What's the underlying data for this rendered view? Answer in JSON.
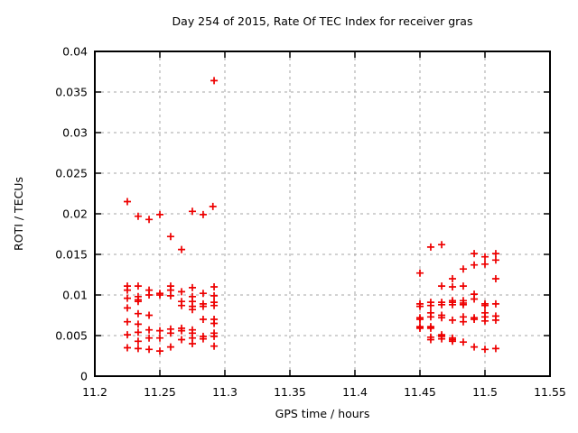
{
  "window": {
    "background_color": "#ffffff",
    "text_color": "#000000"
  },
  "chart_data": {
    "type": "scatter",
    "title": "Day 254 of 2015, Rate Of TEC Index for receiver gras",
    "xlabel": "GPS time / hours",
    "ylabel": "ROTI / TECUs",
    "xlim": [
      11.2,
      11.55
    ],
    "ylim": [
      0,
      0.04
    ],
    "xticks": {
      "values": [
        11.2,
        11.25,
        11.3,
        11.35,
        11.4,
        11.45,
        11.5,
        11.55
      ],
      "labels": [
        "11.2",
        "11.25",
        "11.3",
        "11.35",
        "11.4",
        "11.45",
        "11.5",
        "11.55"
      ]
    },
    "yticks": {
      "values": [
        0,
        0.005,
        0.01,
        0.015,
        0.02,
        0.025,
        0.03,
        0.035,
        0.04
      ],
      "labels": [
        "0",
        "0.005",
        "0.01",
        "0.015",
        "0.02",
        "0.025",
        "0.03",
        "0.035",
        "0.04"
      ]
    },
    "grid": true,
    "grid_color": "#a6a6a6",
    "border_color": "#000000",
    "legend": "none",
    "marker": {
      "shape": "plus",
      "color": "#ee0000",
      "size": 8
    },
    "series": [
      {
        "name": "ROTI",
        "points": [
          [
            11.225,
            0.0215
          ],
          [
            11.2333,
            0.0197
          ],
          [
            11.2417,
            0.0193
          ],
          [
            11.25,
            0.0199
          ],
          [
            11.2583,
            0.0172
          ],
          [
            11.2667,
            0.0156
          ],
          [
            11.275,
            0.0203
          ],
          [
            11.2833,
            0.0199
          ],
          [
            11.2908,
            0.0209
          ],
          [
            11.2917,
            0.0364
          ],
          [
            11.225,
            0.0111
          ],
          [
            11.225,
            0.0106
          ],
          [
            11.225,
            0.0096
          ],
          [
            11.225,
            0.0084
          ],
          [
            11.225,
            0.0067
          ],
          [
            11.225,
            0.0051
          ],
          [
            11.225,
            0.0035
          ],
          [
            11.2333,
            0.0111
          ],
          [
            11.2333,
            0.0098
          ],
          [
            11.2333,
            0.0094
          ],
          [
            11.2333,
            0.0092
          ],
          [
            11.2333,
            0.0077
          ],
          [
            11.2333,
            0.0064
          ],
          [
            11.2333,
            0.0054
          ],
          [
            11.2333,
            0.0043
          ],
          [
            11.2333,
            0.0034
          ],
          [
            11.2417,
            0.0106
          ],
          [
            11.2417,
            0.01
          ],
          [
            11.2417,
            0.0075
          ],
          [
            11.2417,
            0.0057
          ],
          [
            11.2417,
            0.0047
          ],
          [
            11.2417,
            0.0033
          ],
          [
            11.25,
            0.0102
          ],
          [
            11.25,
            0.01
          ],
          [
            11.25,
            0.0056
          ],
          [
            11.25,
            0.0047
          ],
          [
            11.25,
            0.0031
          ],
          [
            11.2583,
            0.0111
          ],
          [
            11.2583,
            0.0106
          ],
          [
            11.2583,
            0.0099
          ],
          [
            11.2583,
            0.0058
          ],
          [
            11.2583,
            0.0053
          ],
          [
            11.2583,
            0.0036
          ],
          [
            11.2667,
            0.0104
          ],
          [
            11.2667,
            0.0092
          ],
          [
            11.2667,
            0.0087
          ],
          [
            11.2667,
            0.0059
          ],
          [
            11.2667,
            0.0056
          ],
          [
            11.2667,
            0.0045
          ],
          [
            11.275,
            0.0109
          ],
          [
            11.275,
            0.0098
          ],
          [
            11.275,
            0.0092
          ],
          [
            11.275,
            0.0086
          ],
          [
            11.275,
            0.0082
          ],
          [
            11.275,
            0.0057
          ],
          [
            11.275,
            0.0053
          ],
          [
            11.275,
            0.0047
          ],
          [
            11.275,
            0.004
          ],
          [
            11.2833,
            0.0102
          ],
          [
            11.2833,
            0.0089
          ],
          [
            11.2833,
            0.0086
          ],
          [
            11.2833,
            0.007
          ],
          [
            11.2833,
            0.0049
          ],
          [
            11.2833,
            0.0046
          ],
          [
            11.2917,
            0.011
          ],
          [
            11.2917,
            0.0099
          ],
          [
            11.2917,
            0.0091
          ],
          [
            11.2917,
            0.0087
          ],
          [
            11.2917,
            0.007
          ],
          [
            11.2917,
            0.0065
          ],
          [
            11.2917,
            0.0053
          ],
          [
            11.2917,
            0.0049
          ],
          [
            11.2917,
            0.0037
          ],
          [
            11.45,
            0.0127
          ],
          [
            11.45,
            0.0089
          ],
          [
            11.45,
            0.0086
          ],
          [
            11.45,
            0.0072
          ],
          [
            11.45,
            0.007
          ],
          [
            11.45,
            0.0061
          ],
          [
            11.45,
            0.0059
          ],
          [
            11.4583,
            0.0159
          ],
          [
            11.4583,
            0.0091
          ],
          [
            11.4583,
            0.0087
          ],
          [
            11.4583,
            0.0078
          ],
          [
            11.4583,
            0.0073
          ],
          [
            11.4583,
            0.0061
          ],
          [
            11.4583,
            0.0059
          ],
          [
            11.4583,
            0.0048
          ],
          [
            11.4583,
            0.0045
          ],
          [
            11.4667,
            0.0162
          ],
          [
            11.4667,
            0.0111
          ],
          [
            11.4667,
            0.0091
          ],
          [
            11.4667,
            0.0088
          ],
          [
            11.4667,
            0.0075
          ],
          [
            11.4667,
            0.0072
          ],
          [
            11.4667,
            0.0051
          ],
          [
            11.4667,
            0.0049
          ],
          [
            11.4667,
            0.0046
          ],
          [
            11.475,
            0.012
          ],
          [
            11.475,
            0.011
          ],
          [
            11.475,
            0.0093
          ],
          [
            11.475,
            0.0091
          ],
          [
            11.475,
            0.0088
          ],
          [
            11.475,
            0.0069
          ],
          [
            11.475,
            0.0047
          ],
          [
            11.475,
            0.0045
          ],
          [
            11.475,
            0.0043
          ],
          [
            11.4833,
            0.0132
          ],
          [
            11.4833,
            0.0111
          ],
          [
            11.4833,
            0.0093
          ],
          [
            11.4833,
            0.009
          ],
          [
            11.4833,
            0.0088
          ],
          [
            11.4833,
            0.0073
          ],
          [
            11.4833,
            0.0067
          ],
          [
            11.4833,
            0.0042
          ],
          [
            11.4917,
            0.0151
          ],
          [
            11.4917,
            0.0137
          ],
          [
            11.4917,
            0.0101
          ],
          [
            11.4917,
            0.0095
          ],
          [
            11.4917,
            0.0072
          ],
          [
            11.4917,
            0.007
          ],
          [
            11.4917,
            0.0036
          ],
          [
            11.5,
            0.0147
          ],
          [
            11.5,
            0.0138
          ],
          [
            11.5,
            0.0089
          ],
          [
            11.5,
            0.0087
          ],
          [
            11.5,
            0.0078
          ],
          [
            11.5,
            0.0073
          ],
          [
            11.5,
            0.0068
          ],
          [
            11.5,
            0.0033
          ],
          [
            11.5083,
            0.0151
          ],
          [
            11.5083,
            0.0143
          ],
          [
            11.5083,
            0.012
          ],
          [
            11.5083,
            0.0089
          ],
          [
            11.5083,
            0.0074
          ],
          [
            11.5083,
            0.0069
          ],
          [
            11.5083,
            0.0034
          ]
        ]
      }
    ]
  }
}
